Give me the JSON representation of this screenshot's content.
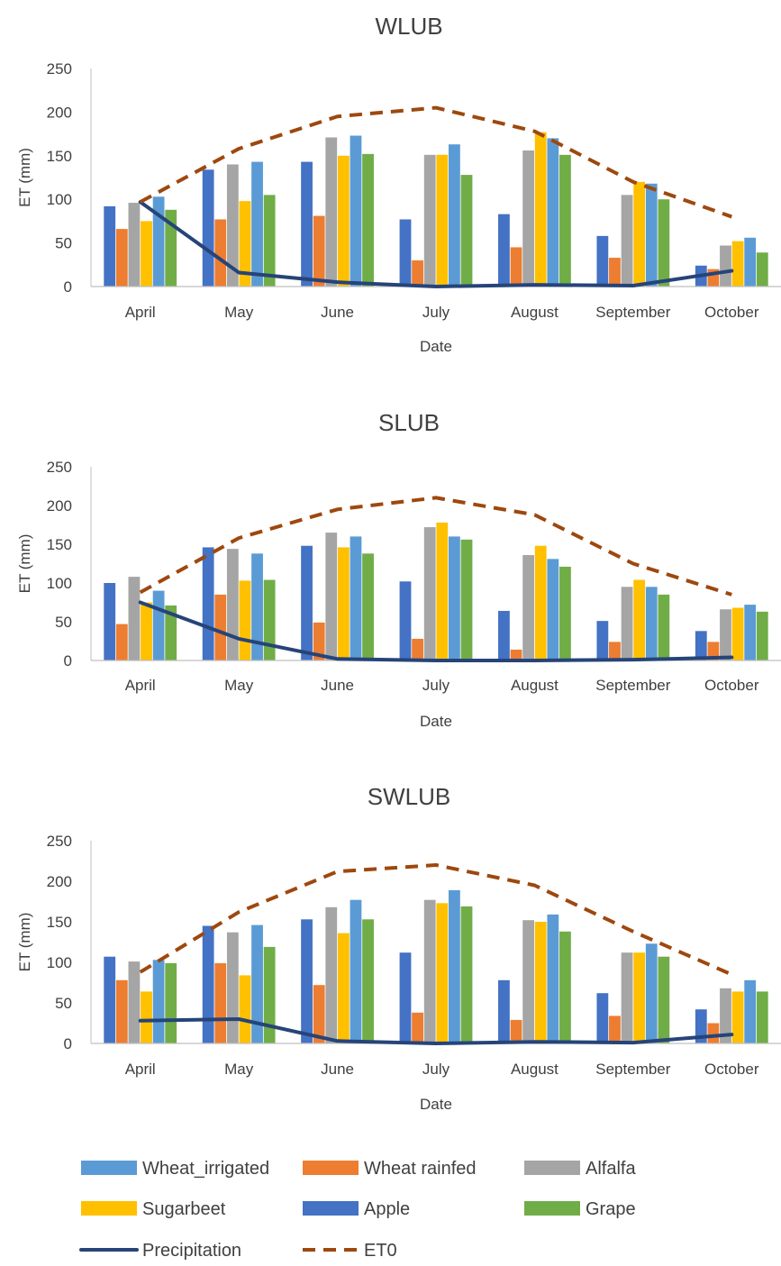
{
  "chart_data": [
    {
      "type": "bar",
      "title": "WLUB",
      "xlabel": "Date",
      "ylabel": "ET (mm)",
      "ylim": [
        0,
        250
      ],
      "yticks": [
        0,
        50,
        100,
        150,
        200,
        250
      ],
      "categories": [
        "April",
        "May",
        "June",
        "July",
        "August",
        "September",
        "October"
      ],
      "series": [
        {
          "name": "Apple",
          "values": [
            92,
            134,
            143,
            77,
            83,
            58,
            24
          ]
        },
        {
          "name": "Wheat rainfed",
          "values": [
            66,
            77,
            81,
            30,
            45,
            33,
            20
          ]
        },
        {
          "name": "Alfalfa",
          "values": [
            96,
            140,
            171,
            151,
            156,
            105,
            47
          ]
        },
        {
          "name": "Sugarbeet",
          "values": [
            75,
            98,
            150,
            151,
            177,
            120,
            52
          ]
        },
        {
          "name": "Wheat_irrigated",
          "values": [
            103,
            143,
            173,
            163,
            170,
            118,
            56
          ]
        },
        {
          "name": "Grape",
          "values": [
            88,
            105,
            152,
            128,
            151,
            100,
            39
          ]
        }
      ],
      "lines": [
        {
          "name": "Precipitation",
          "values": [
            97,
            16,
            5,
            0,
            2,
            1,
            18
          ]
        },
        {
          "name": "ET0",
          "values": [
            97,
            158,
            195,
            205,
            178,
            120,
            80
          ]
        }
      ]
    },
    {
      "type": "bar",
      "title": "SLUB",
      "xlabel": "Date",
      "ylabel": "ET (mm)",
      "ylim": [
        0,
        250
      ],
      "yticks": [
        0,
        50,
        100,
        150,
        200,
        250
      ],
      "categories": [
        "April",
        "May",
        "June",
        "July",
        "August",
        "September",
        "October"
      ],
      "series": [
        {
          "name": "Apple",
          "values": [
            100,
            146,
            148,
            102,
            64,
            51,
            38
          ]
        },
        {
          "name": "Wheat rainfed",
          "values": [
            47,
            85,
            49,
            28,
            14,
            24,
            24
          ]
        },
        {
          "name": "Alfalfa",
          "values": [
            108,
            144,
            165,
            172,
            136,
            95,
            66
          ]
        },
        {
          "name": "Sugarbeet",
          "values": [
            75,
            103,
            146,
            178,
            148,
            104,
            68
          ]
        },
        {
          "name": "Wheat_irrigated",
          "values": [
            90,
            138,
            160,
            160,
            131,
            95,
            72
          ]
        },
        {
          "name": "Grape",
          "values": [
            71,
            104,
            138,
            156,
            121,
            85,
            63
          ]
        }
      ],
      "lines": [
        {
          "name": "Precipitation",
          "values": [
            75,
            28,
            2,
            0,
            0,
            1,
            4
          ]
        },
        {
          "name": "ET0",
          "values": [
            88,
            158,
            195,
            210,
            188,
            125,
            85
          ]
        }
      ]
    },
    {
      "type": "bar",
      "title": "SWLUB",
      "xlabel": "Date",
      "ylabel": "ET (mm)",
      "ylim": [
        0,
        250
      ],
      "yticks": [
        0,
        50,
        100,
        150,
        200,
        250
      ],
      "categories": [
        "April",
        "May",
        "June",
        "July",
        "August",
        "September",
        "October"
      ],
      "series": [
        {
          "name": "Apple",
          "values": [
            107,
            145,
            153,
            112,
            78,
            62,
            42
          ]
        },
        {
          "name": "Wheat rainfed",
          "values": [
            78,
            99,
            72,
            38,
            29,
            34,
            25
          ]
        },
        {
          "name": "Alfalfa",
          "values": [
            101,
            137,
            168,
            177,
            152,
            112,
            68
          ]
        },
        {
          "name": "Sugarbeet",
          "values": [
            64,
            84,
            136,
            173,
            150,
            112,
            64
          ]
        },
        {
          "name": "Wheat_irrigated",
          "values": [
            103,
            146,
            177,
            189,
            159,
            123,
            78
          ]
        },
        {
          "name": "Grape",
          "values": [
            99,
            119,
            153,
            169,
            138,
            107,
            64
          ]
        }
      ],
      "lines": [
        {
          "name": "Precipitation",
          "values": [
            28,
            30,
            3,
            0,
            2,
            1,
            11
          ]
        },
        {
          "name": "ET0",
          "values": [
            88,
            162,
            212,
            220,
            195,
            138,
            85
          ]
        }
      ]
    }
  ],
  "legend": {
    "placement": "bottom",
    "items": [
      {
        "name": "Wheat_irrigated",
        "kind": "bar",
        "color": "#5B9BD5"
      },
      {
        "name": "Wheat rainfed",
        "kind": "bar",
        "color": "#ED7D31"
      },
      {
        "name": "Alfalfa",
        "kind": "bar",
        "color": "#A5A5A5"
      },
      {
        "name": "Sugarbeet",
        "kind": "bar",
        "color": "#FFC000"
      },
      {
        "name": "Apple",
        "kind": "bar",
        "color": "#4472C4"
      },
      {
        "name": "Grape",
        "kind": "bar",
        "color": "#70AD47"
      },
      {
        "name": "Precipitation",
        "kind": "line",
        "color": "#264478"
      },
      {
        "name": "ET0",
        "kind": "dashed-line",
        "color": "#9E480E"
      }
    ]
  },
  "colors": {
    "Apple": "#4472C4",
    "Wheat rainfed": "#ED7D31",
    "Alfalfa": "#A5A5A5",
    "Sugarbeet": "#FFC000",
    "Wheat_irrigated": "#5B9BD5",
    "Grape": "#70AD47",
    "Precipitation": "#264478",
    "ET0": "#9E480E",
    "axis": "#BFBFBF"
  }
}
